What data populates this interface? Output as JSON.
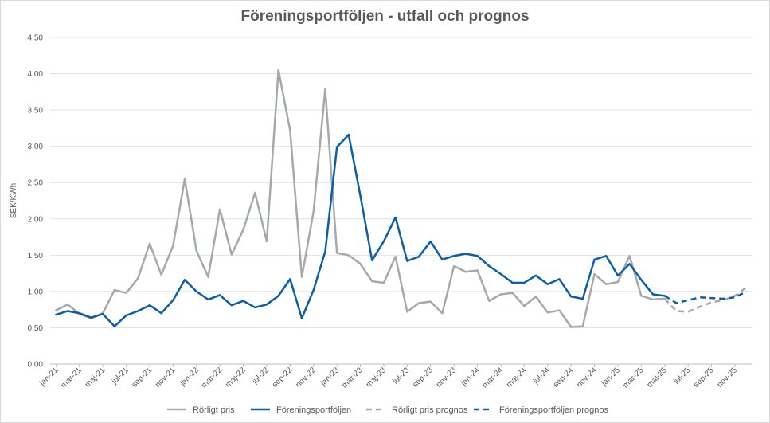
{
  "chart_data": {
    "type": "line",
    "title": "Föreningsportföljen - utfall och prognos",
    "ylabel": "SEK/KWh",
    "xlabel": "",
    "ylim": [
      0,
      4.5
    ],
    "yticks": [
      "0,00",
      "0,50",
      "1,00",
      "1,50",
      "2,00",
      "2,50",
      "3,00",
      "3,50",
      "4,00",
      "4,50"
    ],
    "grid": true,
    "legend_position": "bottom",
    "x": [
      "jan-21",
      "feb-21",
      "mar-21",
      "apr-21",
      "maj-21",
      "jun-21",
      "jul-21",
      "aug-21",
      "sep-21",
      "okt-21",
      "nov-21",
      "dec-21",
      "jan-22",
      "feb-22",
      "mar-22",
      "apr-22",
      "maj-22",
      "jun-22",
      "jul-22",
      "aug-22",
      "sep-22",
      "okt-22",
      "nov-22",
      "dec-22",
      "jan-23",
      "feb-23",
      "mar-23",
      "apr-23",
      "maj-23",
      "jun-23",
      "jul-23",
      "aug-23",
      "sep-23",
      "okt-23",
      "nov-23",
      "dec-23",
      "jan-24",
      "feb-24",
      "mar-24",
      "apr-24",
      "maj-24",
      "jun-24",
      "jul-24",
      "aug-24",
      "sep-24",
      "okt-24",
      "nov-24",
      "dec-24",
      "jan-25",
      "feb-25",
      "mar-25",
      "apr-25",
      "maj-25",
      "jun-25",
      "jul-25",
      "aug-25",
      "sep-25",
      "okt-25",
      "nov-25",
      "dec-25"
    ],
    "x_tick_labels": [
      "jan-21",
      "mar-21",
      "maj-21",
      "jul-21",
      "sep-21",
      "nov-21",
      "jan-22",
      "mar-22",
      "maj-22",
      "jul-22",
      "sep-22",
      "nov-22",
      "jan-23",
      "mar-23",
      "maj-23",
      "jul-23",
      "sep-23",
      "nov-23",
      "jan-24",
      "mar-24",
      "maj-24",
      "jul-24",
      "sep-24",
      "nov-24",
      "jan-25",
      "mar-25",
      "maj-25",
      "jul-25",
      "sep-25",
      "nov-25"
    ],
    "series": [
      {
        "name": "Rörligt pris",
        "color": "#a6a9ac",
        "dash": "solid",
        "values": [
          0.74,
          0.82,
          0.69,
          0.63,
          0.7,
          1.02,
          0.98,
          1.18,
          1.66,
          1.23,
          1.63,
          2.55,
          1.56,
          1.2,
          2.13,
          1.51,
          1.85,
          2.36,
          1.69,
          4.05,
          3.22,
          1.2,
          2.1,
          3.79,
          1.53,
          1.5,
          1.38,
          1.14,
          1.12,
          1.48,
          0.72,
          0.84,
          0.86,
          0.7,
          1.35,
          1.27,
          1.29,
          0.87,
          0.96,
          0.98,
          0.8,
          0.93,
          0.71,
          0.74,
          0.51,
          0.52,
          1.24,
          1.1,
          1.13,
          1.49,
          0.94,
          0.89,
          0.9,
          null,
          null,
          null,
          null,
          null,
          null,
          null
        ]
      },
      {
        "name": "Föreningsportföljen",
        "color": "#0a5fa8",
        "dash": "solid",
        "values": [
          0.68,
          0.73,
          0.7,
          0.64,
          0.69,
          0.52,
          0.67,
          0.73,
          0.81,
          0.7,
          0.88,
          1.16,
          1.0,
          0.89,
          0.95,
          0.81,
          0.87,
          0.78,
          0.82,
          0.94,
          1.17,
          0.63,
          1.02,
          1.55,
          2.99,
          3.16,
          2.32,
          1.43,
          1.69,
          2.02,
          1.42,
          1.48,
          1.69,
          1.44,
          1.49,
          1.52,
          1.49,
          1.35,
          1.24,
          1.12,
          1.12,
          1.22,
          1.1,
          1.17,
          0.93,
          0.9,
          1.44,
          1.49,
          1.22,
          1.38,
          1.16,
          0.96,
          0.94,
          null,
          null,
          null,
          null,
          null,
          null,
          null
        ]
      },
      {
        "name": "Rörligt pris prognos",
        "color": "#a6a9ac",
        "dash": "dashed",
        "values": [
          null,
          null,
          null,
          null,
          null,
          null,
          null,
          null,
          null,
          null,
          null,
          null,
          null,
          null,
          null,
          null,
          null,
          null,
          null,
          null,
          null,
          null,
          null,
          null,
          null,
          null,
          null,
          null,
          null,
          null,
          null,
          null,
          null,
          null,
          null,
          null,
          null,
          null,
          null,
          null,
          null,
          null,
          null,
          null,
          null,
          null,
          null,
          null,
          null,
          null,
          null,
          null,
          0.9,
          0.73,
          0.72,
          0.79,
          0.85,
          0.88,
          0.94,
          1.06
        ]
      },
      {
        "name": "Föreningsportföljen prognos",
        "color": "#0a5fa8",
        "dash": "dashed",
        "values": [
          null,
          null,
          null,
          null,
          null,
          null,
          null,
          null,
          null,
          null,
          null,
          null,
          null,
          null,
          null,
          null,
          null,
          null,
          null,
          null,
          null,
          null,
          null,
          null,
          null,
          null,
          null,
          null,
          null,
          null,
          null,
          null,
          null,
          null,
          null,
          null,
          null,
          null,
          null,
          null,
          null,
          null,
          null,
          null,
          null,
          null,
          null,
          null,
          null,
          null,
          null,
          null,
          0.94,
          0.84,
          0.88,
          0.92,
          0.91,
          0.9,
          0.92,
          1.0
        ]
      }
    ]
  }
}
